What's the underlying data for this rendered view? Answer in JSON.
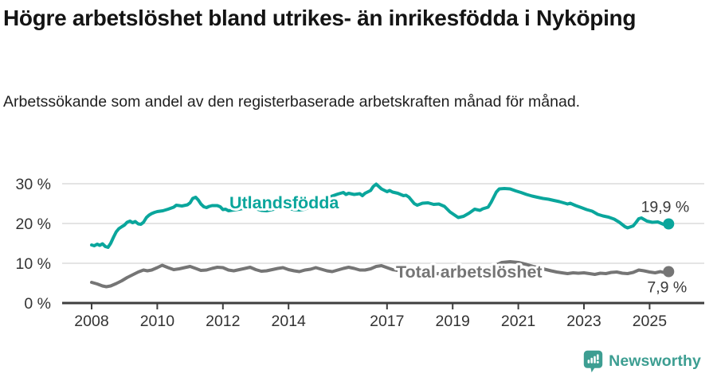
{
  "title": "Högre arbetslöshet bland utrikes- än inrikesfödda i Nyköping",
  "subtitle": "Arbetssökande som andel av den registerbaserade arbetskraften månad för månad.",
  "footer": {
    "brand": "Newsworthy",
    "brand_color": "#3d9e92",
    "logo_icon": "speech-bubble-bar-chart-exclamation-icon"
  },
  "chart_data": {
    "type": "line",
    "title": "Högre arbetslöshet bland utrikes- än inrikesfödda i Nyköping",
    "subtitle": "Arbetssökande som andel av den registerbaserade arbetskraften månad för månad.",
    "xlabel": "",
    "ylabel": "",
    "xlim": [
      2007.1,
      2026.7
    ],
    "ylim": [
      0,
      33
    ],
    "grid": true,
    "legend": "inline-labels",
    "x_tick_labels": [
      "2008",
      "2010",
      "2012",
      "2014",
      "2017",
      "2019",
      "2021",
      "2023",
      "2025"
    ],
    "x_ticks": [
      2008,
      2010,
      2012,
      2014,
      2017,
      2019,
      2021,
      2023,
      2025
    ],
    "y_tick_labels": [
      "0 %",
      "10 %",
      "20 %",
      "30 %"
    ],
    "y_ticks": [
      0,
      10,
      20,
      30
    ],
    "style": {
      "grid_color": "#dcdcdc",
      "axis_color": "#3e3e3e",
      "tick_text_color": "#333333",
      "value_label_color": "#3a3a3a",
      "halo_color": "#ffffff"
    },
    "series": [
      {
        "name": "Utlandsfödda",
        "color": "#0aa69c",
        "end_label": "19,9 %",
        "end_value": 19.9,
        "points": [
          [
            2008.0,
            14.6
          ],
          [
            2008.08,
            14.4
          ],
          [
            2008.17,
            14.8
          ],
          [
            2008.25,
            14.5
          ],
          [
            2008.33,
            14.9
          ],
          [
            2008.42,
            14.2
          ],
          [
            2008.5,
            14.0
          ],
          [
            2008.58,
            15.0
          ],
          [
            2008.67,
            16.6
          ],
          [
            2008.75,
            17.9
          ],
          [
            2008.83,
            18.7
          ],
          [
            2008.92,
            19.2
          ],
          [
            2009.0,
            19.6
          ],
          [
            2009.08,
            20.3
          ],
          [
            2009.17,
            20.6
          ],
          [
            2009.25,
            20.2
          ],
          [
            2009.33,
            20.5
          ],
          [
            2009.42,
            19.9
          ],
          [
            2009.5,
            19.8
          ],
          [
            2009.58,
            20.3
          ],
          [
            2009.67,
            21.5
          ],
          [
            2009.75,
            22.1
          ],
          [
            2009.83,
            22.5
          ],
          [
            2009.92,
            22.8
          ],
          [
            2010.0,
            23.0
          ],
          [
            2010.17,
            23.2
          ],
          [
            2010.33,
            23.6
          ],
          [
            2010.5,
            24.1
          ],
          [
            2010.58,
            24.6
          ],
          [
            2010.67,
            24.5
          ],
          [
            2010.75,
            24.4
          ],
          [
            2010.92,
            24.7
          ],
          [
            2011.0,
            25.2
          ],
          [
            2011.08,
            26.3
          ],
          [
            2011.17,
            26.6
          ],
          [
            2011.25,
            25.9
          ],
          [
            2011.33,
            24.9
          ],
          [
            2011.42,
            24.2
          ],
          [
            2011.5,
            24.0
          ],
          [
            2011.58,
            24.3
          ],
          [
            2011.67,
            24.5
          ],
          [
            2011.83,
            24.5
          ],
          [
            2011.92,
            24.2
          ],
          [
            2012.0,
            23.5
          ],
          [
            2012.08,
            23.6
          ],
          [
            2012.17,
            23.2
          ],
          [
            2012.33,
            23.4
          ],
          [
            2012.5,
            23.6
          ],
          [
            2012.67,
            23.9
          ],
          [
            2012.83,
            24.1
          ],
          [
            2013.0,
            23.7
          ],
          [
            2013.17,
            23.3
          ],
          [
            2013.33,
            23.2
          ],
          [
            2013.5,
            23.5
          ],
          [
            2013.67,
            23.8
          ],
          [
            2013.83,
            24.0
          ],
          [
            2014.0,
            23.8
          ],
          [
            2014.17,
            23.5
          ],
          [
            2014.33,
            23.4
          ],
          [
            2014.5,
            23.6
          ],
          [
            2014.67,
            24.3
          ],
          [
            2014.83,
            25.1
          ],
          [
            2015.0,
            25.7
          ],
          [
            2015.17,
            26.3
          ],
          [
            2015.33,
            26.9
          ],
          [
            2015.5,
            27.4
          ],
          [
            2015.67,
            27.8
          ],
          [
            2015.75,
            27.3
          ],
          [
            2015.83,
            27.6
          ],
          [
            2016.0,
            27.3
          ],
          [
            2016.17,
            27.5
          ],
          [
            2016.25,
            27.0
          ],
          [
            2016.33,
            27.6
          ],
          [
            2016.5,
            28.3
          ],
          [
            2016.58,
            29.3
          ],
          [
            2016.67,
            29.9
          ],
          [
            2016.75,
            29.3
          ],
          [
            2016.83,
            28.7
          ],
          [
            2017.0,
            28.0
          ],
          [
            2017.08,
            28.3
          ],
          [
            2017.17,
            27.9
          ],
          [
            2017.33,
            27.6
          ],
          [
            2017.5,
            27.0
          ],
          [
            2017.58,
            27.1
          ],
          [
            2017.67,
            26.6
          ],
          [
            2017.83,
            25.0
          ],
          [
            2017.92,
            24.6
          ],
          [
            2018.08,
            25.1
          ],
          [
            2018.25,
            25.2
          ],
          [
            2018.42,
            24.8
          ],
          [
            2018.58,
            24.9
          ],
          [
            2018.75,
            24.3
          ],
          [
            2018.92,
            22.9
          ],
          [
            2019.08,
            22.0
          ],
          [
            2019.17,
            21.5
          ],
          [
            2019.33,
            21.8
          ],
          [
            2019.5,
            22.6
          ],
          [
            2019.67,
            23.6
          ],
          [
            2019.83,
            23.3
          ],
          [
            2019.92,
            23.7
          ],
          [
            2020.08,
            24.1
          ],
          [
            2020.17,
            25.3
          ],
          [
            2020.33,
            27.9
          ],
          [
            2020.42,
            28.7
          ],
          [
            2020.58,
            28.8
          ],
          [
            2020.75,
            28.7
          ],
          [
            2020.92,
            28.2
          ],
          [
            2021.08,
            27.8
          ],
          [
            2021.25,
            27.3
          ],
          [
            2021.42,
            26.9
          ],
          [
            2021.58,
            26.6
          ],
          [
            2021.75,
            26.3
          ],
          [
            2021.92,
            26.1
          ],
          [
            2022.08,
            25.8
          ],
          [
            2022.25,
            25.5
          ],
          [
            2022.42,
            25.1
          ],
          [
            2022.5,
            24.9
          ],
          [
            2022.58,
            25.1
          ],
          [
            2022.75,
            24.5
          ],
          [
            2022.92,
            24.0
          ],
          [
            2023.08,
            23.5
          ],
          [
            2023.25,
            23.1
          ],
          [
            2023.42,
            22.3
          ],
          [
            2023.58,
            21.9
          ],
          [
            2023.75,
            21.6
          ],
          [
            2023.92,
            21.1
          ],
          [
            2024.08,
            20.3
          ],
          [
            2024.25,
            19.2
          ],
          [
            2024.33,
            18.9
          ],
          [
            2024.5,
            19.4
          ],
          [
            2024.58,
            20.2
          ],
          [
            2024.67,
            21.2
          ],
          [
            2024.75,
            21.4
          ],
          [
            2024.92,
            20.6
          ],
          [
            2025.08,
            20.3
          ],
          [
            2025.25,
            20.4
          ],
          [
            2025.42,
            19.8
          ],
          [
            2025.58,
            19.9
          ]
        ]
      },
      {
        "name": "Total arbetslöshet",
        "color": "#757575",
        "end_label": "7,9 %",
        "end_value": 7.9,
        "points": [
          [
            2008.0,
            5.2
          ],
          [
            2008.17,
            4.8
          ],
          [
            2008.33,
            4.3
          ],
          [
            2008.45,
            4.1
          ],
          [
            2008.58,
            4.3
          ],
          [
            2008.75,
            4.9
          ],
          [
            2008.92,
            5.6
          ],
          [
            2009.08,
            6.4
          ],
          [
            2009.25,
            7.1
          ],
          [
            2009.42,
            7.8
          ],
          [
            2009.58,
            8.3
          ],
          [
            2009.7,
            8.1
          ],
          [
            2009.83,
            8.3
          ],
          [
            2010.0,
            8.9
          ],
          [
            2010.15,
            9.5
          ],
          [
            2010.33,
            8.9
          ],
          [
            2010.5,
            8.4
          ],
          [
            2010.67,
            8.6
          ],
          [
            2010.83,
            8.9
          ],
          [
            2011.0,
            9.2
          ],
          [
            2011.17,
            8.7
          ],
          [
            2011.33,
            8.2
          ],
          [
            2011.5,
            8.3
          ],
          [
            2011.67,
            8.7
          ],
          [
            2011.83,
            9.0
          ],
          [
            2012.0,
            8.9
          ],
          [
            2012.17,
            8.3
          ],
          [
            2012.33,
            8.1
          ],
          [
            2012.5,
            8.4
          ],
          [
            2012.67,
            8.7
          ],
          [
            2012.83,
            9.0
          ],
          [
            2013.0,
            8.4
          ],
          [
            2013.17,
            8.0
          ],
          [
            2013.33,
            8.1
          ],
          [
            2013.5,
            8.4
          ],
          [
            2013.67,
            8.7
          ],
          [
            2013.83,
            8.9
          ],
          [
            2014.0,
            8.4
          ],
          [
            2014.17,
            8.1
          ],
          [
            2014.33,
            7.9
          ],
          [
            2014.5,
            8.3
          ],
          [
            2014.67,
            8.5
          ],
          [
            2014.83,
            8.9
          ],
          [
            2015.0,
            8.5
          ],
          [
            2015.17,
            8.1
          ],
          [
            2015.33,
            7.9
          ],
          [
            2015.5,
            8.3
          ],
          [
            2015.67,
            8.7
          ],
          [
            2015.83,
            9.0
          ],
          [
            2016.0,
            8.7
          ],
          [
            2016.17,
            8.3
          ],
          [
            2016.33,
            8.3
          ],
          [
            2016.5,
            8.6
          ],
          [
            2016.67,
            9.2
          ],
          [
            2016.83,
            9.4
          ],
          [
            2017.0,
            8.9
          ],
          [
            2017.17,
            8.4
          ],
          [
            2017.33,
            8.2
          ],
          [
            2017.5,
            8.1
          ],
          [
            2017.67,
            8.0
          ],
          [
            2017.83,
            7.9
          ],
          [
            2018.0,
            7.7
          ],
          [
            2018.25,
            7.5
          ],
          [
            2018.5,
            7.4
          ],
          [
            2018.75,
            7.3
          ],
          [
            2019.0,
            7.1
          ],
          [
            2019.25,
            7.0
          ],
          [
            2019.5,
            7.2
          ],
          [
            2019.75,
            7.5
          ],
          [
            2020.0,
            7.9
          ],
          [
            2020.25,
            9.3
          ],
          [
            2020.5,
            10.2
          ],
          [
            2020.75,
            10.4
          ],
          [
            2021.0,
            10.2
          ],
          [
            2021.25,
            9.7
          ],
          [
            2021.5,
            9.1
          ],
          [
            2021.75,
            8.6
          ],
          [
            2022.0,
            8.1
          ],
          [
            2022.17,
            7.8
          ],
          [
            2022.33,
            7.6
          ],
          [
            2022.5,
            7.4
          ],
          [
            2022.67,
            7.6
          ],
          [
            2022.83,
            7.5
          ],
          [
            2023.0,
            7.6
          ],
          [
            2023.17,
            7.4
          ],
          [
            2023.33,
            7.2
          ],
          [
            2023.5,
            7.5
          ],
          [
            2023.67,
            7.4
          ],
          [
            2023.83,
            7.7
          ],
          [
            2024.0,
            7.8
          ],
          [
            2024.17,
            7.5
          ],
          [
            2024.33,
            7.4
          ],
          [
            2024.5,
            7.7
          ],
          [
            2024.67,
            8.3
          ],
          [
            2024.83,
            8.1
          ],
          [
            2025.0,
            7.8
          ],
          [
            2025.17,
            7.6
          ],
          [
            2025.33,
            7.9
          ],
          [
            2025.42,
            7.7
          ],
          [
            2025.58,
            7.9
          ]
        ]
      }
    ]
  }
}
